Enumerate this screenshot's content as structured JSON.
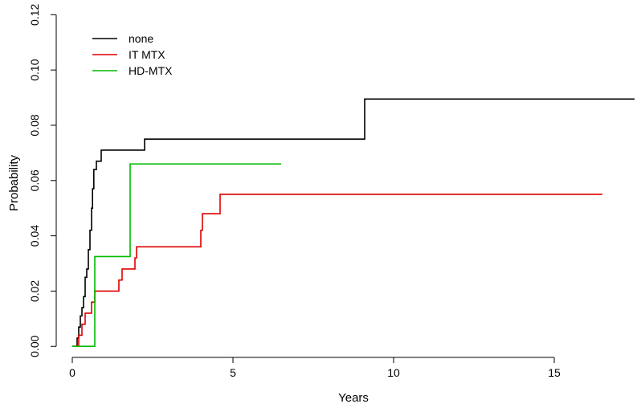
{
  "chart_data": {
    "type": "line",
    "step": true,
    "xlabel": "Years",
    "ylabel": "Probability",
    "xlim": [
      -0.5,
      17.5
    ],
    "ylim": [
      -0.004,
      0.123
    ],
    "xticks": [
      0,
      5,
      10,
      15
    ],
    "xtick_labels": [
      "0",
      "5",
      "10",
      "15"
    ],
    "yticks": [
      0.0,
      0.02,
      0.04,
      0.06,
      0.08,
      0.1,
      0.12
    ],
    "ytick_labels": [
      "0.00",
      "0.02",
      "0.04",
      "0.06",
      "0.08",
      "0.10",
      "0.12"
    ],
    "legend_position": "top-left",
    "series": [
      {
        "name": "none",
        "color": "#000000",
        "x": [
          0,
          0.15,
          0.2,
          0.25,
          0.3,
          0.35,
          0.4,
          0.45,
          0.5,
          0.55,
          0.6,
          0.63,
          0.67,
          0.7,
          0.75,
          0.9,
          2.25,
          9.1,
          17.5
        ],
        "y": [
          0,
          0.003,
          0.007,
          0.011,
          0.014,
          0.018,
          0.025,
          0.028,
          0.035,
          0.042,
          0.05,
          0.057,
          0.064,
          0.064,
          0.067,
          0.071,
          0.075,
          0.0895,
          0.0895
        ]
      },
      {
        "name": "IT MTX",
        "color": "#dd0000",
        "x": [
          0,
          0.2,
          0.3,
          0.4,
          0.5,
          0.6,
          0.7,
          1.45,
          1.5,
          1.55,
          1.6,
          1.95,
          2.0,
          4.0,
          4.05,
          4.6,
          16.5
        ],
        "y": [
          0,
          0.004,
          0.008,
          0.012,
          0.012,
          0.016,
          0.02,
          0.024,
          0.024,
          0.028,
          0.028,
          0.032,
          0.036,
          0.042,
          0.048,
          0.055,
          0.055
        ]
      },
      {
        "name": "HD-MTX",
        "color": "#00bb00",
        "x": [
          0,
          0.7,
          1.8,
          6.5
        ],
        "y": [
          0,
          0.0325,
          0.066,
          0.066
        ]
      }
    ]
  }
}
